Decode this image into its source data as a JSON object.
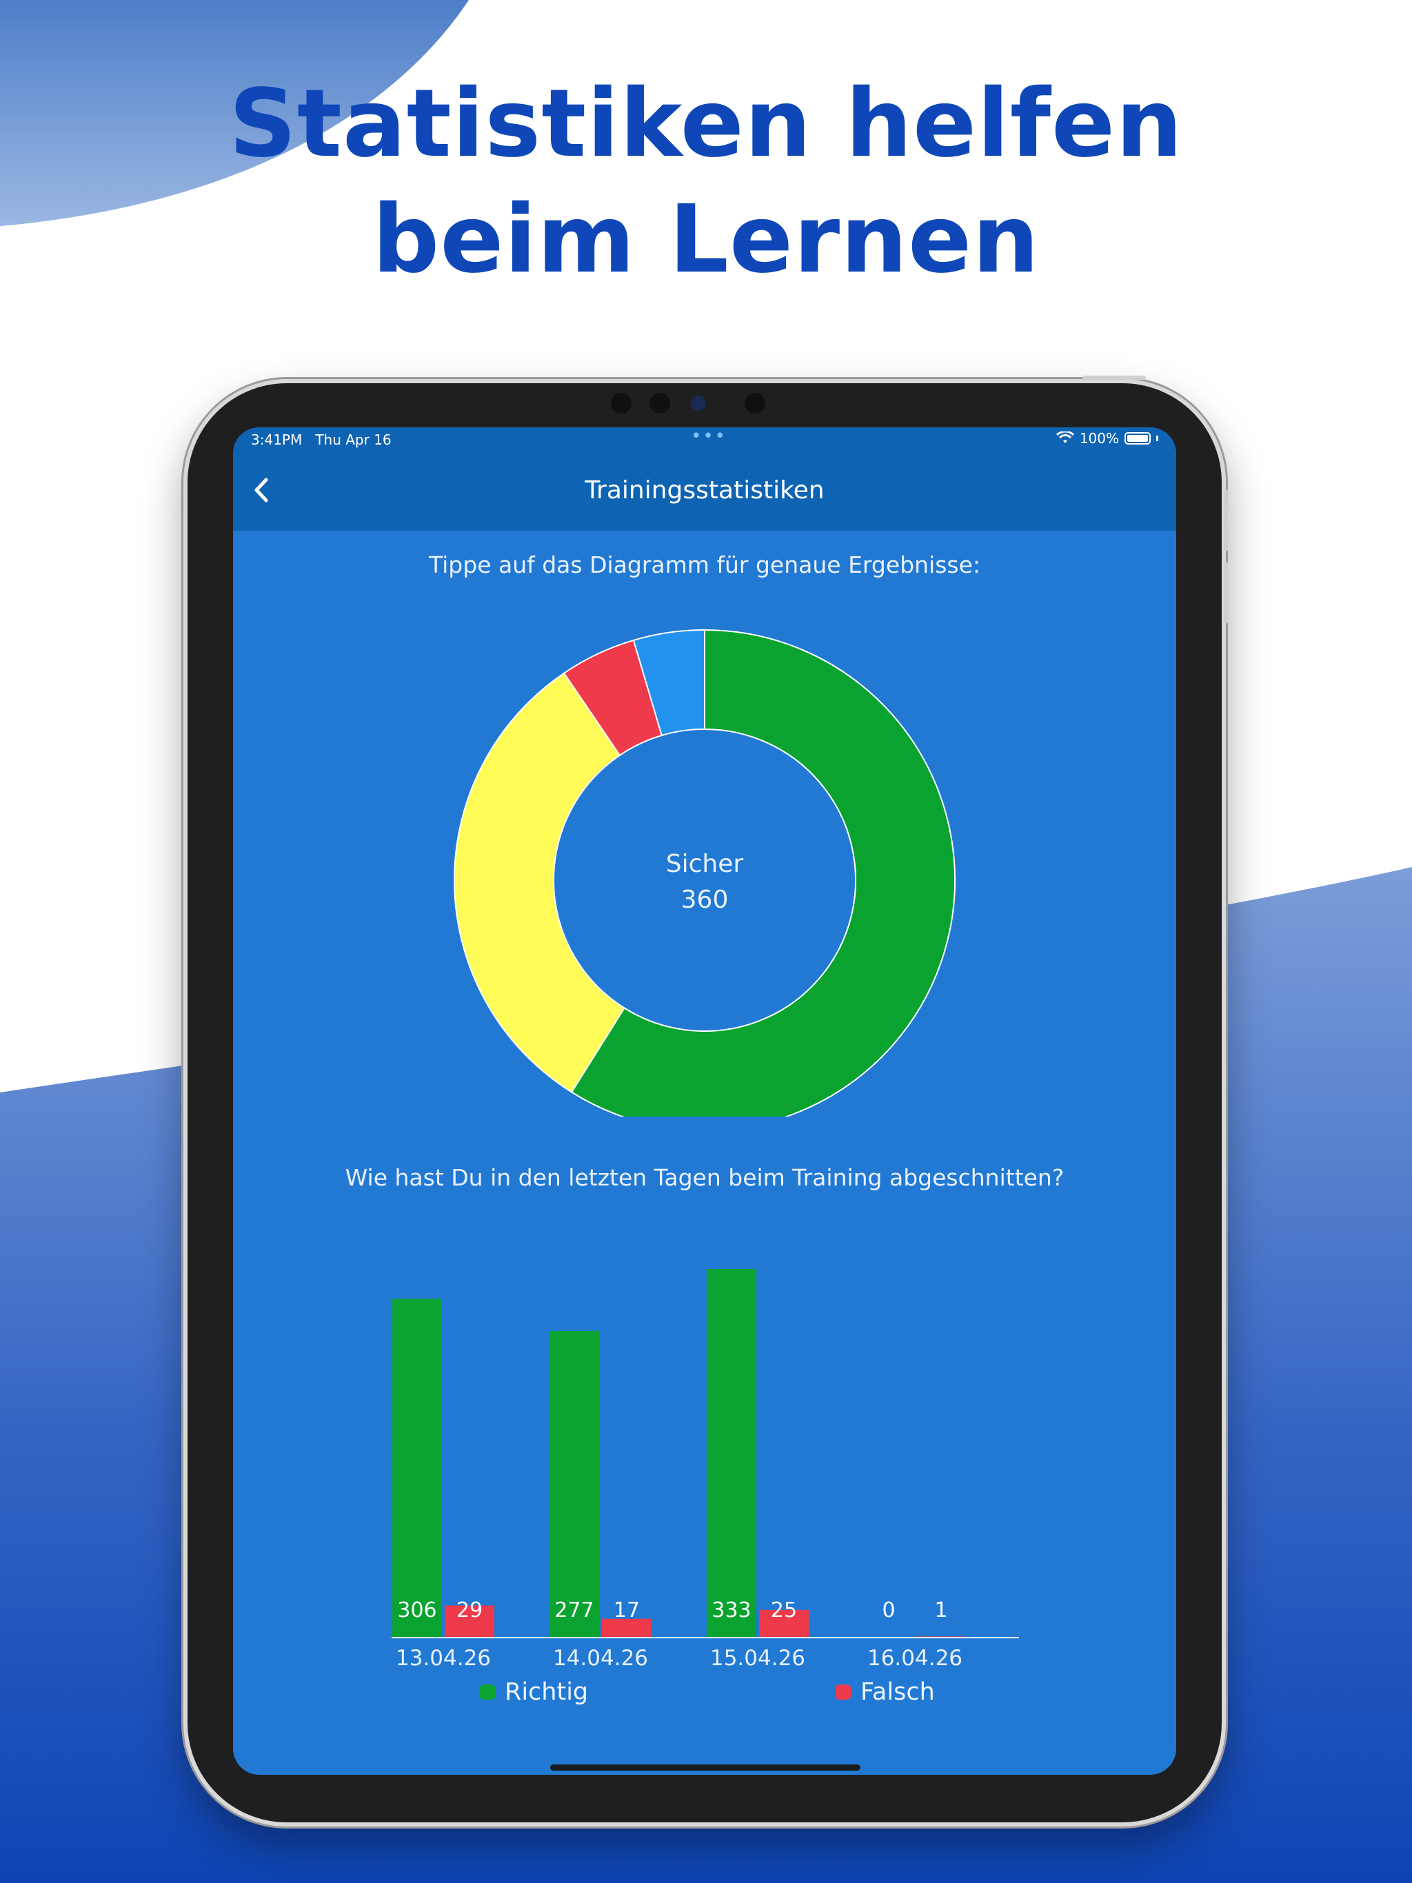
{
  "headline": {
    "line1": "Statistiken helfen",
    "line2": "beim Lernen"
  },
  "colors": {
    "accent": "#0f47b8",
    "screen_bg": "#2179d4",
    "navbar_bg": "#0f63b3",
    "green": "#0aa32f",
    "yellow": "#fffb57",
    "red": "#ef3a4b",
    "blue": "#2392ee"
  },
  "status_bar": {
    "time": "3:41PM",
    "date": "Thu Apr 16",
    "battery": "100%"
  },
  "nav": {
    "title": "Trainingsstatistiken",
    "back_icon": "chevron-left-icon"
  },
  "donut_caption": "Tippe auf das Diagramm für genaue Ergebnisse:",
  "donut_center": {
    "label": "Sicher",
    "value": "360"
  },
  "bar_caption": "Wie hast Du in den letzten Tagen beim Training abgeschnitten?",
  "chart_data": [
    {
      "type": "pie",
      "variant": "donut",
      "slices": [
        {
          "label": "Sicher",
          "value": 360,
          "color": "#0aa32f"
        },
        {
          "value": 193,
          "color": "#fffb57"
        },
        {
          "value": 30,
          "color": "#ef3a4b"
        },
        {
          "value": 28,
          "color": "#2392ee"
        }
      ]
    },
    {
      "type": "bar",
      "categories": [
        "13.04.26",
        "14.04.26",
        "15.04.26",
        "16.04.26"
      ],
      "series": [
        {
          "name": "Richtig",
          "values": [
            306,
            277,
            333,
            0
          ],
          "color": "#0aa32f"
        },
        {
          "name": "Falsch",
          "values": [
            29,
            17,
            25,
            1
          ],
          "color": "#ef3a4b"
        }
      ],
      "ylim": [
        0,
        333
      ],
      "legend": "bottom"
    }
  ]
}
